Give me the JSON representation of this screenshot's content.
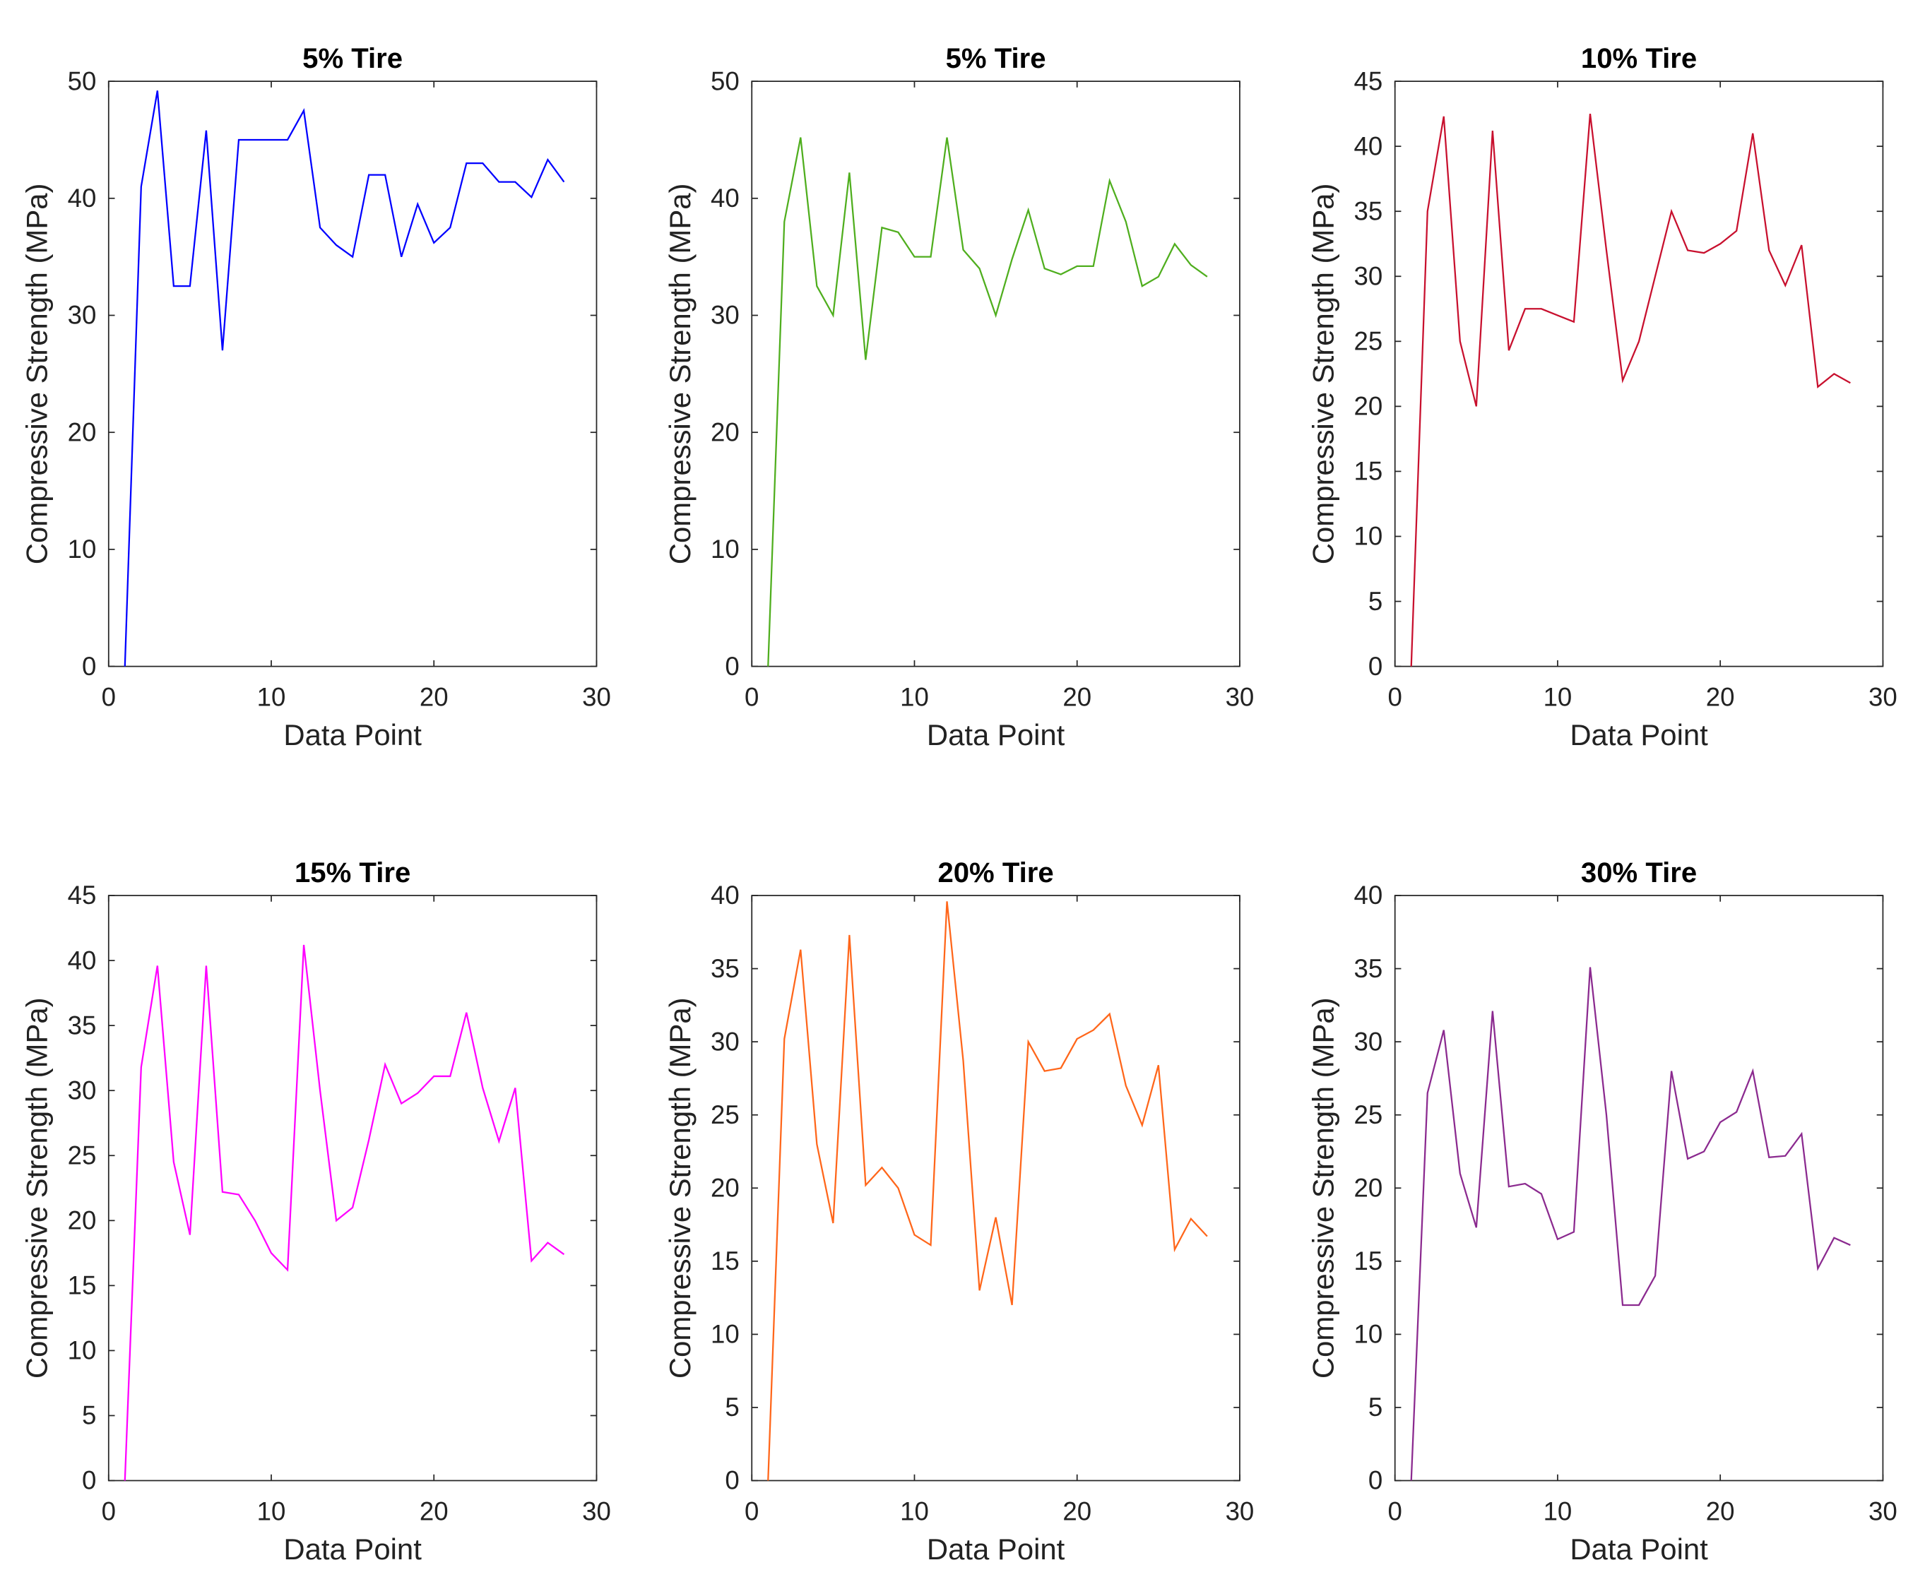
{
  "chart_data": [
    {
      "type": "line",
      "title": "5% Tire",
      "xlabel": "Data Point",
      "ylabel": "Compressive Strength (MPa)",
      "color": "#0000ff",
      "xlim": [
        0,
        30
      ],
      "xticks": [
        0,
        10,
        20,
        30
      ],
      "ylim": [
        0,
        50
      ],
      "yticks": [
        0,
        10,
        20,
        30,
        40,
        50
      ],
      "x": [
        1,
        2,
        3,
        4,
        5,
        6,
        7,
        8,
        9,
        10,
        11,
        12,
        13,
        14,
        15,
        16,
        17,
        18,
        19,
        20,
        21,
        22,
        23,
        24,
        25,
        26,
        27,
        28
      ],
      "values": [
        0,
        41,
        49.2,
        32.5,
        32.5,
        45.8,
        27,
        45,
        45,
        45,
        45,
        47.5,
        37.5,
        36,
        35,
        42,
        42,
        35,
        39.5,
        36.2,
        37.5,
        43,
        43,
        41.4,
        41.4,
        40.1,
        43.3,
        41.4
      ]
    },
    {
      "type": "line",
      "title": "5% Tire",
      "xlabel": "Data Point",
      "ylabel": "Compressive Strength (MPa)",
      "color": "#4fae1e",
      "xlim": [
        0,
        30
      ],
      "xticks": [
        0,
        10,
        20,
        30
      ],
      "ylim": [
        0,
        50
      ],
      "yticks": [
        0,
        10,
        20,
        30,
        40,
        50
      ],
      "x": [
        1,
        2,
        3,
        4,
        5,
        6,
        7,
        8,
        9,
        10,
        11,
        12,
        13,
        14,
        15,
        16,
        17,
        18,
        19,
        20,
        21,
        22,
        23,
        24,
        25,
        26,
        27,
        28
      ],
      "values": [
        0,
        38,
        45.2,
        32.5,
        30,
        42.2,
        26.2,
        37.5,
        37.1,
        35,
        35,
        45.2,
        35.6,
        34,
        30,
        34.8,
        39,
        34,
        33.5,
        34.2,
        34.2,
        41.5,
        38,
        32.5,
        33.3,
        36.1,
        34.3,
        33.3
      ]
    },
    {
      "type": "line",
      "title": "10% Tire",
      "xlabel": "Data Point",
      "ylabel": "Compressive Strength (MPa)",
      "color": "#c8102e",
      "xlim": [
        0,
        30
      ],
      "xticks": [
        0,
        10,
        20,
        30
      ],
      "ylim": [
        0,
        45
      ],
      "yticks": [
        0,
        5,
        10,
        15,
        20,
        25,
        30,
        35,
        40,
        45
      ],
      "x": [
        1,
        2,
        3,
        4,
        5,
        6,
        7,
        8,
        9,
        10,
        11,
        12,
        13,
        14,
        15,
        16,
        17,
        18,
        19,
        20,
        21,
        22,
        23,
        24,
        25,
        26,
        27,
        28
      ],
      "values": [
        0,
        35,
        42.3,
        25,
        20,
        41.2,
        24.3,
        27.5,
        27.5,
        27,
        26.5,
        42.5,
        32,
        22,
        25,
        30,
        35,
        32,
        31.8,
        32.5,
        33.5,
        41,
        32,
        29.3,
        32.4,
        21.5,
        22.5,
        21.8
      ]
    },
    {
      "type": "line",
      "title": "15% Tire",
      "xlabel": "Data Point",
      "ylabel": "Compressive Strength (MPa)",
      "color": "#ff00ff",
      "xlim": [
        0,
        30
      ],
      "xticks": [
        0,
        10,
        20,
        30
      ],
      "ylim": [
        0,
        45
      ],
      "yticks": [
        0,
        5,
        10,
        15,
        20,
        25,
        30,
        35,
        40,
        45
      ],
      "x": [
        1,
        2,
        3,
        4,
        5,
        6,
        7,
        8,
        9,
        10,
        11,
        12,
        13,
        14,
        15,
        16,
        17,
        18,
        19,
        20,
        21,
        22,
        23,
        24,
        25,
        26,
        27,
        28
      ],
      "values": [
        0,
        31.8,
        39.6,
        24.5,
        18.9,
        39.6,
        22.2,
        22,
        20,
        17.5,
        16.2,
        41.2,
        30,
        20,
        21,
        26.2,
        32,
        29,
        29.8,
        31.1,
        31.1,
        36,
        30.2,
        26.1,
        30.2,
        16.9,
        18.3,
        17.4
      ]
    },
    {
      "type": "line",
      "title": "20% Tire",
      "xlabel": "Data Point",
      "ylabel": "Compressive Strength (MPa)",
      "color": "#ff661a",
      "xlim": [
        0,
        30
      ],
      "xticks": [
        0,
        10,
        20,
        30
      ],
      "ylim": [
        0,
        40
      ],
      "yticks": [
        0,
        5,
        10,
        15,
        20,
        25,
        30,
        35,
        40
      ],
      "x": [
        1,
        2,
        3,
        4,
        5,
        6,
        7,
        8,
        9,
        10,
        11,
        12,
        13,
        14,
        15,
        16,
        17,
        18,
        19,
        20,
        21,
        22,
        23,
        24,
        25,
        26,
        27,
        28
      ],
      "values": [
        0,
        30.2,
        36.3,
        23,
        17.6,
        37.3,
        20.2,
        21.4,
        20,
        16.8,
        16.1,
        39.6,
        28.7,
        13,
        18,
        12,
        30,
        28,
        28.2,
        30.2,
        30.8,
        31.9,
        27,
        24.3,
        28.4,
        15.8,
        17.9,
        16.7
      ]
    },
    {
      "type": "line",
      "title": "30% Tire",
      "xlabel": "Data Point",
      "ylabel": "Compressive Strength (MPa)",
      "color": "#8b2a8f",
      "xlim": [
        0,
        30
      ],
      "xticks": [
        0,
        10,
        20,
        30
      ],
      "ylim": [
        0,
        40
      ],
      "yticks": [
        0,
        5,
        10,
        15,
        20,
        25,
        30,
        35,
        40
      ],
      "x": [
        1,
        2,
        3,
        4,
        5,
        6,
        7,
        8,
        9,
        10,
        11,
        12,
        13,
        14,
        15,
        16,
        17,
        18,
        19,
        20,
        21,
        22,
        23,
        24,
        25,
        26,
        27,
        28
      ],
      "values": [
        0,
        26.5,
        30.8,
        21,
        17.3,
        32.1,
        20.1,
        20.3,
        19.6,
        16.5,
        17,
        35.1,
        25,
        12,
        12,
        14,
        28,
        22,
        22.5,
        24.5,
        25.2,
        28,
        22.1,
        22.2,
        23.7,
        14.5,
        16.6,
        16.1
      ]
    }
  ]
}
